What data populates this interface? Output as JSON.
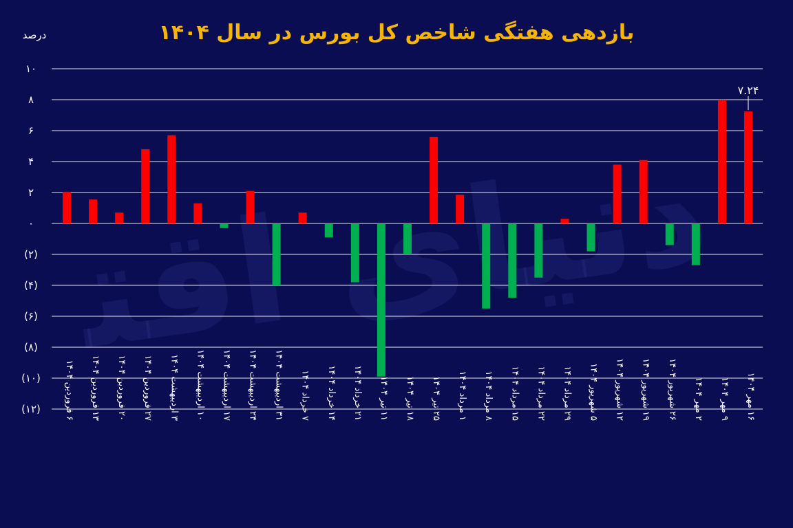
{
  "title": "بازدهی هفتگی شاخص کل بورس در سال ۱۴۰۴",
  "y_unit": "درصد",
  "watermark": "دنیای اقتصاد",
  "colors": {
    "background": "#0b0d52",
    "positive": "#ff0000",
    "negative": "#00b050",
    "title": "#f5b50a",
    "grid": "#ffffff"
  },
  "chart_data": {
    "type": "bar",
    "title": "بازدهی هفتگی شاخص کل بورس در سال ۱۴۰۴",
    "ylabel": "درصد",
    "xlabel": "",
    "ylim": [
      -12,
      10
    ],
    "yticks": [
      {
        "value": 10,
        "label": "۱۰"
      },
      {
        "value": 8,
        "label": "۸"
      },
      {
        "value": 6,
        "label": "۶"
      },
      {
        "value": 4,
        "label": "۴"
      },
      {
        "value": 2,
        "label": "۲"
      },
      {
        "value": 0,
        "label": "۰"
      },
      {
        "value": -2,
        "label": "(۲)"
      },
      {
        "value": -4,
        "label": "(۴)"
      },
      {
        "value": -6,
        "label": "(۶)"
      },
      {
        "value": -8,
        "label": "(۸)"
      },
      {
        "value": -10,
        "label": "(۱۰)"
      },
      {
        "value": -12,
        "label": "(۱۲)"
      }
    ],
    "grid": true,
    "categories": [
      "۶ فروردین ۱۴۰۴",
      "۱۳ فروردین ۱۴۰۴",
      "۲۰ فروردین ۱۴۰۴",
      "۲۷ فروردین ۱۴۰۴",
      "۳ اردیبهشت ۱۴۰۴",
      "۱۰ اردیبهشت ۱۴۰۴",
      "۱۷ اردیبهشت ۱۴۰۴",
      "۲۴ اردیبهشت ۱۴۰۴",
      "۳۱ اردیبهشت ۱۴۰۴",
      "۷ خرداد ۱۴۰۴",
      "۱۴ خرداد ۱۴۰۴",
      "۲۱ خرداد ۱۴۰۴",
      "۱۱ تیر ۱۴۰۴",
      "۱۸ تیر ۱۴۰۴",
      "۲۵ تیر ۱۴۰۴",
      "۱ مرداد ۱۴۰۴",
      "۸ مرداد ۱۴۰۴",
      "۱۵ مرداد ۱۴۰۴",
      "۲۲ مرداد ۱۴۰۴",
      "۲۹ مرداد ۱۴۰۴",
      "۵ شهریور ۱۴۰۴",
      "۱۲ شهریور ۱۴۰۴",
      "۱۹ شهریور ۱۴۰۴",
      "۲۶ شهریور ۱۴۰۴",
      "۲ مهر ۱۴۰۴",
      "۹ مهر ۱۴۰۴",
      "۱۶ مهر ۱۴۰۴"
    ],
    "values": [
      2.05,
      1.55,
      0.7,
      4.8,
      5.7,
      1.3,
      -0.3,
      2.1,
      -4.0,
      0.7,
      -0.9,
      -3.8,
      -9.9,
      -2.0,
      5.6,
      1.85,
      -5.5,
      -4.8,
      -3.5,
      0.3,
      -1.8,
      3.8,
      4.1,
      -1.4,
      -2.7,
      8.0,
      7.24
    ],
    "annotations": [
      {
        "category_index": 26,
        "label": "۷.۲۴"
      }
    ]
  }
}
